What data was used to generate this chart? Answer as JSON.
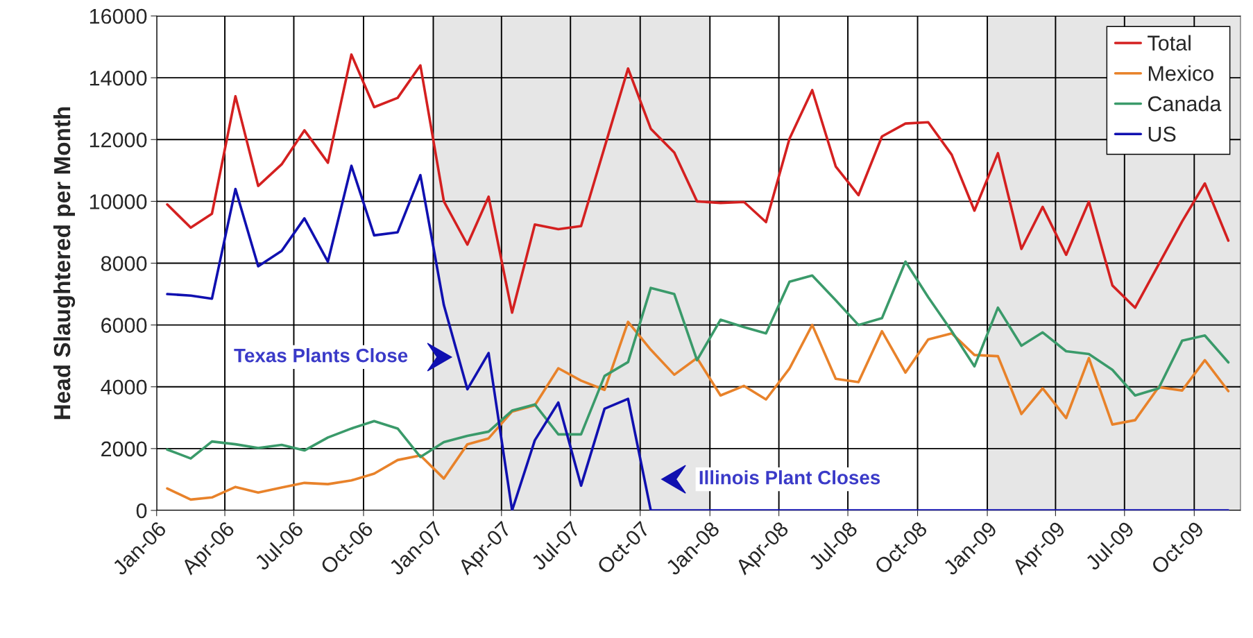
{
  "chart_data": {
    "type": "line",
    "ylabel": "Head Slaughtered per Month",
    "x": [
      "2006-01-15",
      "2006-02-15",
      "2006-03-15",
      "2006-04-15",
      "2006-05-15",
      "2006-06-15",
      "2006-07-15",
      "2006-08-15",
      "2006-09-15",
      "2006-10-15",
      "2006-11-15",
      "2006-12-15",
      "2007-01-15",
      "2007-02-15",
      "2007-03-15",
      "2007-04-15",
      "2007-05-15",
      "2007-06-15",
      "2007-07-15",
      "2007-08-15",
      "2007-09-15",
      "2007-10-15",
      "2007-11-15",
      "2007-12-15",
      "2008-01-15",
      "2008-02-15",
      "2008-03-15",
      "2008-04-15",
      "2008-05-15",
      "2008-06-15",
      "2008-07-15",
      "2008-08-15",
      "2008-09-15",
      "2008-10-15",
      "2008-11-15",
      "2008-12-15",
      "2009-01-15",
      "2009-02-15",
      "2009-03-15",
      "2009-04-15",
      "2009-05-15",
      "2009-06-15",
      "2009-07-15",
      "2009-08-15",
      "2009-09-15",
      "2009-10-15",
      "2009-11-15"
    ],
    "series": [
      {
        "name": "Total",
        "color": "#d42020",
        "values": [
          9900,
          9150,
          9600,
          13400,
          10500,
          11200,
          12300,
          11250,
          14750,
          13050,
          13350,
          14400,
          10000,
          8600,
          10150,
          6400,
          9250,
          9100,
          9200,
          11750,
          14300,
          12350,
          11580,
          10000,
          9950,
          9980,
          9330,
          12030,
          13600,
          11130,
          10200,
          12100,
          12520,
          12560,
          11510,
          9700,
          11560,
          8460,
          9820,
          8270,
          9990,
          7280,
          6560,
          7960,
          9350,
          10580,
          8730
        ]
      },
      {
        "name": "Mexico",
        "color": "#e8822a",
        "values": [
          710,
          350,
          420,
          760,
          580,
          740,
          890,
          850,
          970,
          1190,
          1630,
          1780,
          1030,
          2140,
          2330,
          3200,
          3400,
          4600,
          4200,
          3900,
          6100,
          5200,
          4390,
          4930,
          3720,
          4030,
          3590,
          4590,
          6000,
          4260,
          4150,
          5800,
          4460,
          5530,
          5730,
          5030,
          4990,
          3120,
          3950,
          2990,
          4930,
          2780,
          2920,
          3990,
          3880,
          4860,
          3860
        ]
      },
      {
        "name": "Canada",
        "color": "#3a9a6a",
        "values": [
          1970,
          1680,
          2230,
          2140,
          2020,
          2120,
          1940,
          2360,
          2650,
          2890,
          2650,
          1730,
          2210,
          2410,
          2550,
          3230,
          3430,
          2460,
          2460,
          4350,
          4800,
          7200,
          7000,
          4860,
          6170,
          5930,
          5730,
          7400,
          7600,
          6800,
          6000,
          6220,
          8050,
          6900,
          5800,
          4660,
          6560,
          5330,
          5760,
          5150,
          5060,
          4550,
          3720,
          3950,
          5490,
          5660,
          4790
        ]
      },
      {
        "name": "US",
        "color": "#1010b0",
        "values": [
          7000,
          6950,
          6850,
          10400,
          7900,
          8400,
          9450,
          8050,
          11150,
          8900,
          9000,
          10850,
          6640,
          3920,
          5090,
          0,
          2270,
          3490,
          800,
          3290,
          3610,
          0,
          0,
          0,
          0,
          0,
          0,
          0,
          0,
          0,
          0,
          0,
          0,
          0,
          0,
          0,
          0,
          0,
          0,
          0,
          0,
          0,
          0,
          0,
          0,
          0,
          0
        ]
      }
    ],
    "xlim": [
      "2006-01-01",
      "2009-12-01"
    ],
    "xticks": [
      {
        "value": "2006-01-01",
        "label": "Jan-06"
      },
      {
        "value": "2006-04-01",
        "label": "Apr-06"
      },
      {
        "value": "2006-07-01",
        "label": "Jul-06"
      },
      {
        "value": "2006-10-01",
        "label": "Oct-06"
      },
      {
        "value": "2007-01-01",
        "label": "Jan-07"
      },
      {
        "value": "2007-04-01",
        "label": "Apr-07"
      },
      {
        "value": "2007-07-01",
        "label": "Jul-07"
      },
      {
        "value": "2007-10-01",
        "label": "Oct-07"
      },
      {
        "value": "2008-01-01",
        "label": "Jan-08"
      },
      {
        "value": "2008-04-01",
        "label": "Apr-08"
      },
      {
        "value": "2008-07-01",
        "label": "Jul-08"
      },
      {
        "value": "2008-10-01",
        "label": "Oct-08"
      },
      {
        "value": "2009-01-01",
        "label": "Jan-09"
      },
      {
        "value": "2009-04-01",
        "label": "Apr-09"
      },
      {
        "value": "2009-07-01",
        "label": "Jul-09"
      },
      {
        "value": "2009-10-01",
        "label": "Oct-09"
      }
    ],
    "ylim": [
      0,
      16000
    ],
    "yticks": [
      0,
      2000,
      4000,
      6000,
      8000,
      10000,
      12000,
      14000,
      16000
    ],
    "bands": [
      {
        "axis": "x",
        "from": "2007-01-01",
        "to": "2008-01-01",
        "color": "#e6e6e6"
      },
      {
        "axis": "x",
        "from": "2009-01-01",
        "to": "2009-12-01",
        "color": "#e6e6e6"
      }
    ],
    "annotations": [
      "Texas Plants Close",
      "Illinois Plant Closes"
    ],
    "grid": true,
    "legend": "top right",
    "line_style": "solid",
    "marker": "none"
  }
}
